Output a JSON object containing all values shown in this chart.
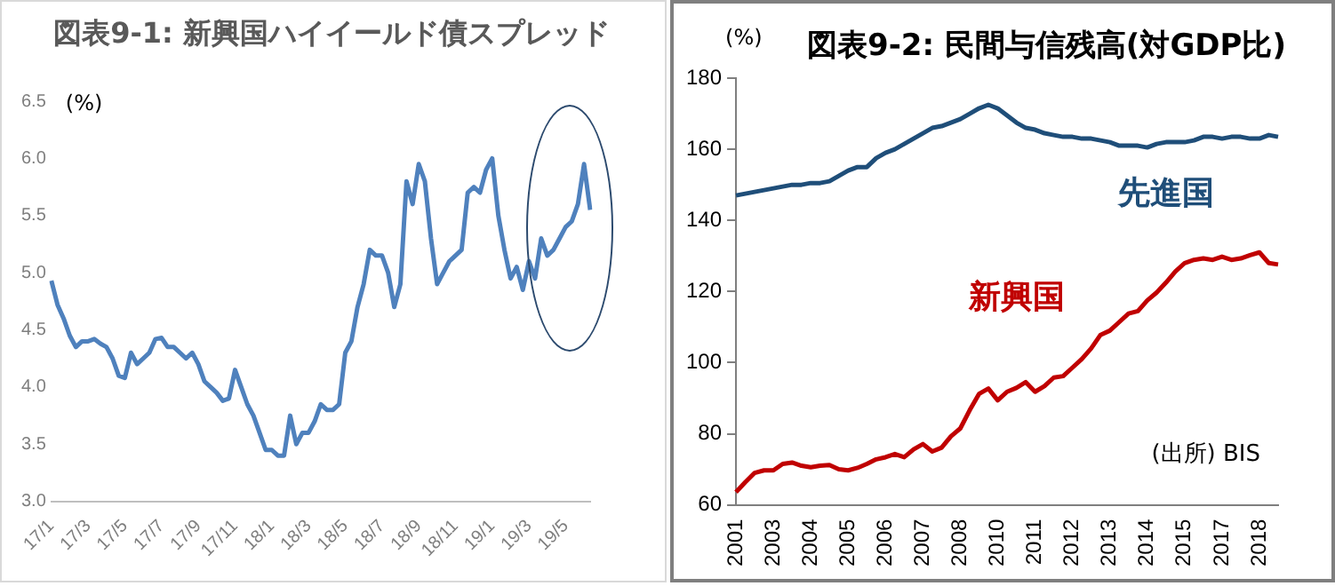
{
  "chart_data": [
    {
      "type": "line",
      "title": "図表9-1: 新興国ハイイールド債スプレッド",
      "ylabel": "(%)",
      "categories": [
        "17/1",
        null,
        null,
        null,
        null,
        null,
        "17/3",
        null,
        null,
        null,
        null,
        null,
        "17/5",
        null,
        null,
        null,
        null,
        null,
        "17/7",
        null,
        null,
        null,
        null,
        null,
        "17/9",
        null,
        null,
        null,
        null,
        null,
        "17/11",
        null,
        null,
        null,
        null,
        null,
        "18/1",
        null,
        null,
        null,
        null,
        null,
        "18/3",
        null,
        null,
        null,
        null,
        null,
        "18/5",
        null,
        null,
        null,
        null,
        null,
        "18/7",
        null,
        null,
        null,
        null,
        null,
        "18/9",
        null,
        null,
        null,
        null,
        null,
        "18/11",
        null,
        null,
        null,
        null,
        null,
        "19/1",
        null,
        null,
        null,
        null,
        null,
        "19/3",
        null,
        null,
        null,
        null,
        null,
        "19/5",
        null,
        null,
        null,
        null
      ],
      "series": [
        {
          "color": "#4f81bd",
          "values": [
            4.93,
            4.72,
            4.6,
            4.45,
            4.35,
            4.4,
            4.4,
            4.42,
            4.38,
            4.35,
            4.25,
            4.1,
            4.08,
            4.3,
            4.2,
            4.25,
            4.3,
            4.42,
            4.43,
            4.35,
            4.35,
            4.3,
            4.25,
            4.3,
            4.2,
            4.05,
            4.0,
            3.95,
            3.88,
            3.9,
            4.15,
            4.0,
            3.85,
            3.75,
            3.6,
            3.45,
            3.45,
            3.4,
            3.4,
            3.75,
            3.5,
            3.6,
            3.6,
            3.7,
            3.85,
            3.8,
            3.8,
            3.85,
            4.3,
            4.4,
            4.7,
            4.9,
            5.2,
            5.15,
            5.15,
            5.0,
            4.7,
            4.9,
            5.8,
            5.6,
            5.95,
            5.8,
            5.3,
            4.9,
            5.0,
            5.1,
            5.15,
            5.2,
            5.7,
            5.75,
            5.7,
            5.9,
            6.0,
            5.5,
            5.2,
            4.95,
            5.05,
            4.85,
            5.1,
            4.95,
            5.3,
            5.15,
            5.2,
            5.3,
            5.4,
            5.45,
            5.6,
            5.95,
            5.55
          ]
        }
      ],
      "ylim": [
        3,
        6.5
      ],
      "yticks": [
        {
          "value": 3,
          "label": "3.0"
        },
        3.5,
        {
          "value": 4,
          "label": "4.0"
        },
        4.5,
        {
          "value": 5,
          "label": "5.0"
        },
        5.5,
        {
          "value": 6,
          "label": "6.0"
        },
        6.5
      ],
      "grid": false,
      "legend": false,
      "marker": "none",
      "line_style": "solid"
    },
    {
      "type": "line",
      "title": "図表9-2: 民間与信残高(対GDP比)",
      "ylabel": "(%)",
      "categories": [
        "2001",
        null,
        null,
        null,
        "2003",
        null,
        null,
        null,
        "2004",
        null,
        null,
        null,
        "2005",
        null,
        null,
        null,
        "2006",
        null,
        null,
        null,
        "2007",
        null,
        null,
        null,
        "2008",
        null,
        null,
        null,
        "2010",
        null,
        null,
        null,
        "2011",
        null,
        null,
        null,
        "2012",
        null,
        null,
        null,
        "2013",
        null,
        null,
        null,
        "2014",
        null,
        null,
        null,
        "2015",
        null,
        null,
        null,
        "2017",
        null,
        null,
        null,
        "2018",
        null,
        null
      ],
      "series": [
        {
          "name": "先進国",
          "color": "#1f4e79",
          "values": [
            147,
            147.5,
            148,
            148.5,
            149,
            149.5,
            150,
            150,
            150.5,
            150.5,
            151,
            152.5,
            154,
            155,
            155,
            157.5,
            159,
            160,
            161.5,
            163,
            164.5,
            166,
            166.5,
            167.5,
            168.5,
            170,
            171.5,
            172.5,
            171.5,
            169.5,
            167.5,
            166,
            165.5,
            164.5,
            164,
            163.5,
            163.5,
            163,
            163,
            162.5,
            162,
            161,
            161,
            161,
            160.5,
            161.5,
            162,
            162,
            162,
            162.5,
            163.5,
            163.5,
            163,
            163.5,
            163.5,
            163,
            163,
            164,
            163.5
          ]
        },
        {
          "name": "新興国",
          "color": "#c00000",
          "values": [
            63.6,
            66.4,
            69,
            69.7,
            69.7,
            71.5,
            71.9,
            71,
            70.6,
            71,
            71.2,
            70,
            69.7,
            70.4,
            71.5,
            72.8,
            73.4,
            74.3,
            73.4,
            75.6,
            77.1,
            75,
            76.1,
            79.3,
            81.5,
            86.6,
            91.2,
            92.7,
            89.4,
            91.8,
            92.9,
            94.5,
            91.8,
            93.4,
            95.8,
            96.2,
            98.6,
            101,
            104,
            107.8,
            109,
            111.4,
            113.8,
            114.5,
            117.5,
            119.7,
            122.5,
            125.6,
            128,
            128.9,
            129.3,
            128.9,
            129.8,
            128.9,
            129.3,
            130.2,
            131,
            128,
            127.6
          ]
        }
      ],
      "ylim": [
        60,
        180
      ],
      "yticks": [
        60,
        80,
        100,
        120,
        140,
        160,
        180
      ],
      "annotations": [
        "(出所) BIS"
      ],
      "grid": false,
      "legend": false,
      "marker": "none",
      "line_style": "solid"
    }
  ]
}
